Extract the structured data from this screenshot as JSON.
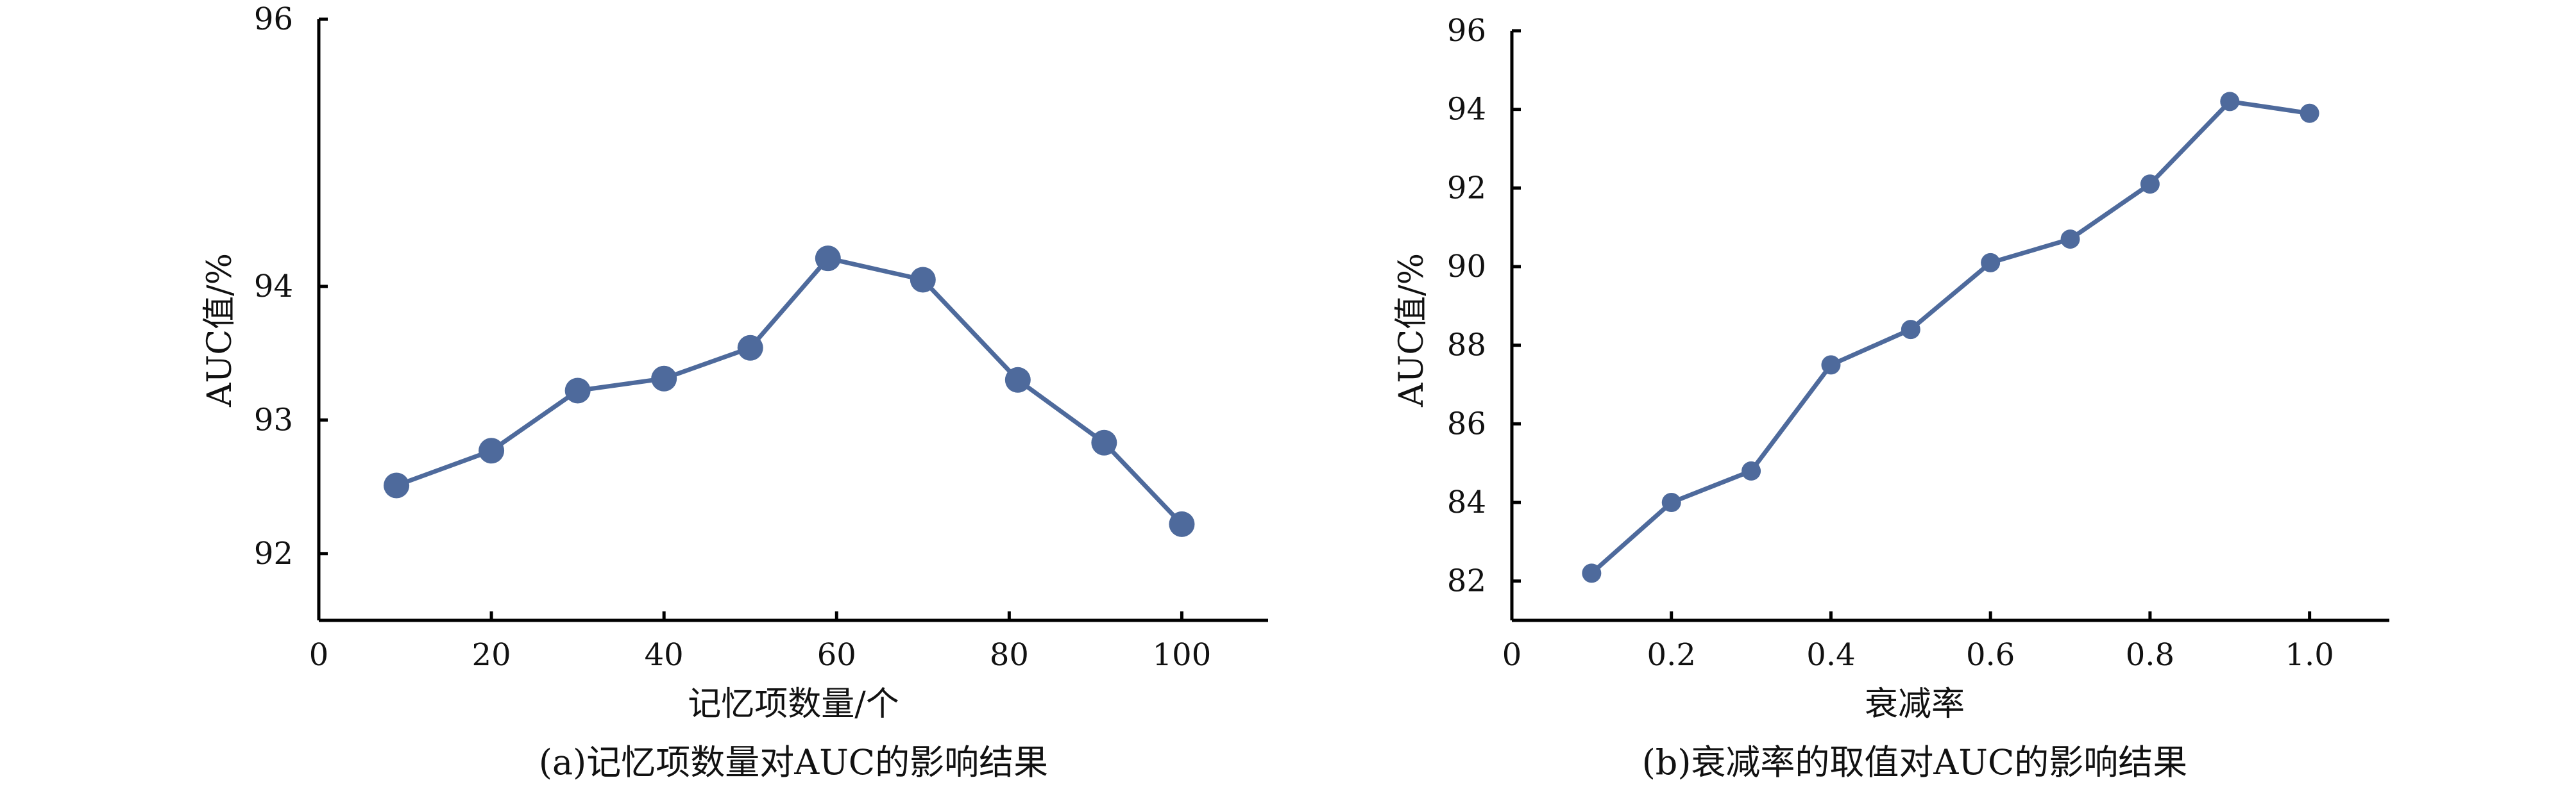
{
  "chart_data": [
    {
      "type": "line",
      "x": [
        9,
        20,
        30,
        40,
        50,
        59,
        70,
        81,
        91,
        100
      ],
      "values": [
        92.51,
        92.77,
        93.22,
        93.31,
        93.54,
        94.21,
        94.05,
        93.3,
        92.83,
        92.22
      ],
      "xlabel": "记忆项数量/个",
      "ylabel": "AUC值/%",
      "caption": "(a)记忆项数量对AUC的影响结果",
      "xlim": [
        0,
        110
      ],
      "ylim": [
        91.5,
        96
      ],
      "xticks": [
        0,
        20,
        40,
        60,
        80,
        100
      ],
      "xtick_labels": [
        "0",
        "20",
        "40",
        "60",
        "80",
        "100"
      ],
      "yticks": [
        92,
        93,
        94,
        96
      ],
      "ytick_labels": [
        "92",
        "93",
        "94",
        "96"
      ],
      "grid": false,
      "color": "#4e6a9c"
    },
    {
      "type": "line",
      "x": [
        0.1,
        0.2,
        0.3,
        0.4,
        0.5,
        0.6,
        0.7,
        0.8,
        0.9,
        1.0
      ],
      "values": [
        82.2,
        84.0,
        84.8,
        87.5,
        88.4,
        90.1,
        90.7,
        92.1,
        94.2,
        93.9
      ],
      "xlabel": "衰减率",
      "ylabel": "AUC值/%",
      "caption": "(b)衰减率的取值对AUC的影响结果",
      "xlim": [
        0,
        1.1
      ],
      "ylim": [
        81,
        96
      ],
      "xticks": [
        0,
        0.2,
        0.4,
        0.6,
        0.8,
        1.0
      ],
      "xtick_labels": [
        "0",
        "0.2",
        "0.4",
        "0.6",
        "0.8",
        "1.0"
      ],
      "yticks": [
        82,
        84,
        86,
        88,
        90,
        92,
        94,
        96
      ],
      "ytick_labels": [
        "82",
        "84",
        "86",
        "88",
        "90",
        "92",
        "94",
        "96"
      ],
      "grid": false,
      "color": "#4e6a9c"
    }
  ]
}
